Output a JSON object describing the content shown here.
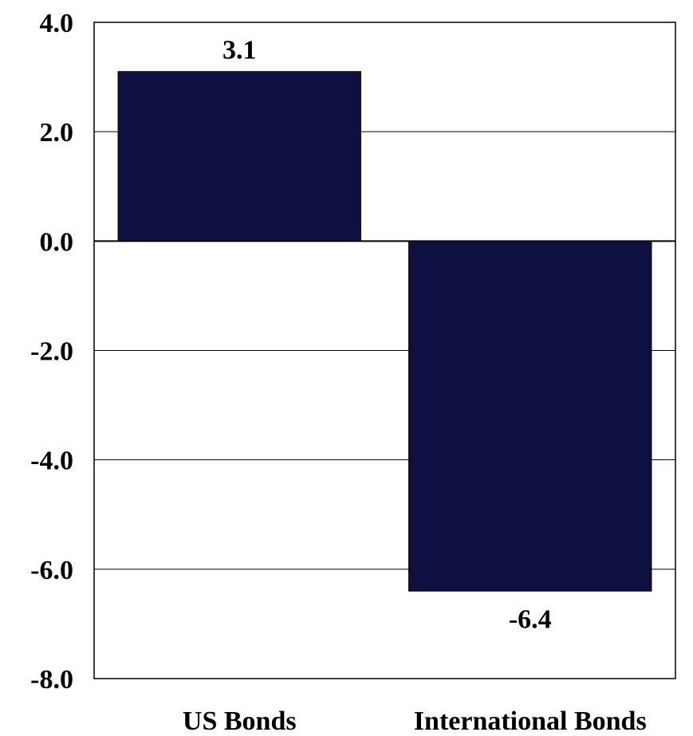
{
  "chart_data": {
    "type": "bar",
    "categories": [
      "US Bonds",
      "International Bonds"
    ],
    "values": [
      3.1,
      -6.4
    ],
    "data_labels": [
      "3.1",
      "-6.4"
    ],
    "title": "",
    "xlabel": "",
    "ylabel": "",
    "ylim": [
      -8.0,
      4.0
    ],
    "yticks": [
      4.0,
      2.0,
      0.0,
      -2.0,
      -4.0,
      -6.0,
      -8.0
    ],
    "ytick_labels": [
      "4.0",
      "2.0",
      "0.0",
      "-2.0",
      "-4.0",
      "-6.0",
      "-8.0"
    ],
    "grid": true,
    "legend": "none",
    "colors": {
      "bar": "#0d1040",
      "grid": "#000000",
      "text": "#000000"
    }
  }
}
